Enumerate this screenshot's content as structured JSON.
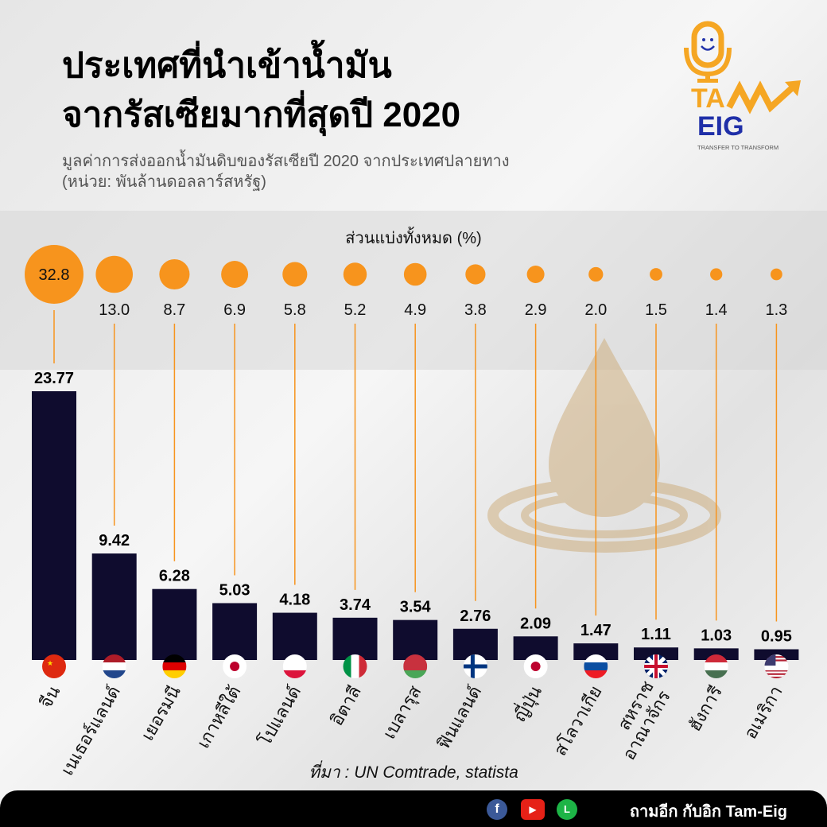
{
  "title_line1": "ประเทศที่นำเข้าน้ำมัน",
  "title_line2": "จากรัสเซียมากที่สุดปี 2020",
  "subtitle_line1": "มูลค่าการส่งออกน้ำมันดิบของรัสเซียปี 2020 จากประเทศปลายทาง",
  "subtitle_line2": "(หน่วย: พันล้านดอลลาร์สหรัฐ)",
  "logo": {
    "brand_top": "TAM",
    "brand_bottom": "EIG",
    "tagline": "TRANSFER TO TRANSFORM"
  },
  "source": "ที่มา : UN Comtrade, statista",
  "footer": {
    "text": "ถามอีก กับอิก Tam-Eig",
    "icons": [
      "facebook-icon",
      "youtube-icon",
      "line-icon"
    ]
  },
  "colors": {
    "bar": "#0f0c2e",
    "accent": "#f7941d",
    "footer": "#000000"
  },
  "chart_data": {
    "type": "bar",
    "title": "ประเทศที่นำเข้าน้ำมันจากรัสเซียมากที่สุดปี 2020",
    "ylabel": "พันล้านดอลลาร์สหรัฐ",
    "share_label": "ส่วนแบ่งทั้งหมด (%)",
    "ylim": [
      0,
      24
    ],
    "categories": [
      "จีน",
      "เนเธอร์แลนด์",
      "เยอรมนี",
      "เกาหลีใต้",
      "โปแลนด์",
      "อิตาลี",
      "เบลารุส",
      "ฟินแลนด์",
      "ญี่ปุ่น",
      "สโลวาเกีย",
      "สหราช\nอาณาจักร",
      "ฮังการี",
      "อเมริกา"
    ],
    "values": [
      23.77,
      9.42,
      6.28,
      5.03,
      4.18,
      3.74,
      3.54,
      2.76,
      2.09,
      1.47,
      1.11,
      1.03,
      0.95
    ],
    "value_labels": [
      "23.77",
      "9.42",
      "6.28",
      "5.03",
      "4.18",
      "3.74",
      "3.54",
      "2.76",
      "2.09",
      "1.47",
      "1.11",
      "1.03",
      "0.95"
    ],
    "shares": [
      32.8,
      13.0,
      8.7,
      6.9,
      5.8,
      5.2,
      4.9,
      3.8,
      2.9,
      2.0,
      1.5,
      1.4,
      1.3
    ],
    "share_labels": [
      "32.8",
      "13.0",
      "8.7",
      "6.9",
      "5.8",
      "5.2",
      "4.9",
      "3.8",
      "2.9",
      "2.0",
      "1.5",
      "1.4",
      "1.3"
    ],
    "flags": [
      "china",
      "netherlands",
      "germany",
      "south-korea",
      "poland",
      "italy",
      "belarus",
      "finland",
      "japan",
      "slovakia",
      "uk",
      "hungary",
      "usa"
    ]
  }
}
